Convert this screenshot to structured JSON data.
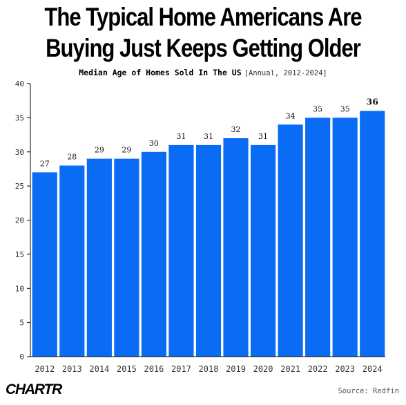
{
  "header": {
    "title_line1": "The Typical Home Americans Are",
    "title_line2": "Buying Just Keeps Getting Older",
    "subtitle": "Median Age of Homes Sold In The US",
    "subnote": "[Annual, 2012-2024]"
  },
  "footer": {
    "logo": "CHARTR",
    "source": "Source: Redfin"
  },
  "colors": {
    "bar": "#0a6cf5",
    "text": "#000000"
  },
  "chart_data": {
    "type": "bar",
    "title": "Median Age of Homes Sold In The US",
    "categories": [
      "2012",
      "2013",
      "2014",
      "2015",
      "2016",
      "2017",
      "2018",
      "2019",
      "2020",
      "2021",
      "2022",
      "2023",
      "2024"
    ],
    "values": [
      27,
      28,
      29,
      29,
      30,
      31,
      31,
      32,
      31,
      34,
      35,
      35,
      36
    ],
    "ylim": [
      0,
      40
    ],
    "yticks": [
      0,
      5,
      10,
      15,
      20,
      25,
      30,
      35,
      40
    ],
    "grid": false,
    "data_labels": true
  }
}
